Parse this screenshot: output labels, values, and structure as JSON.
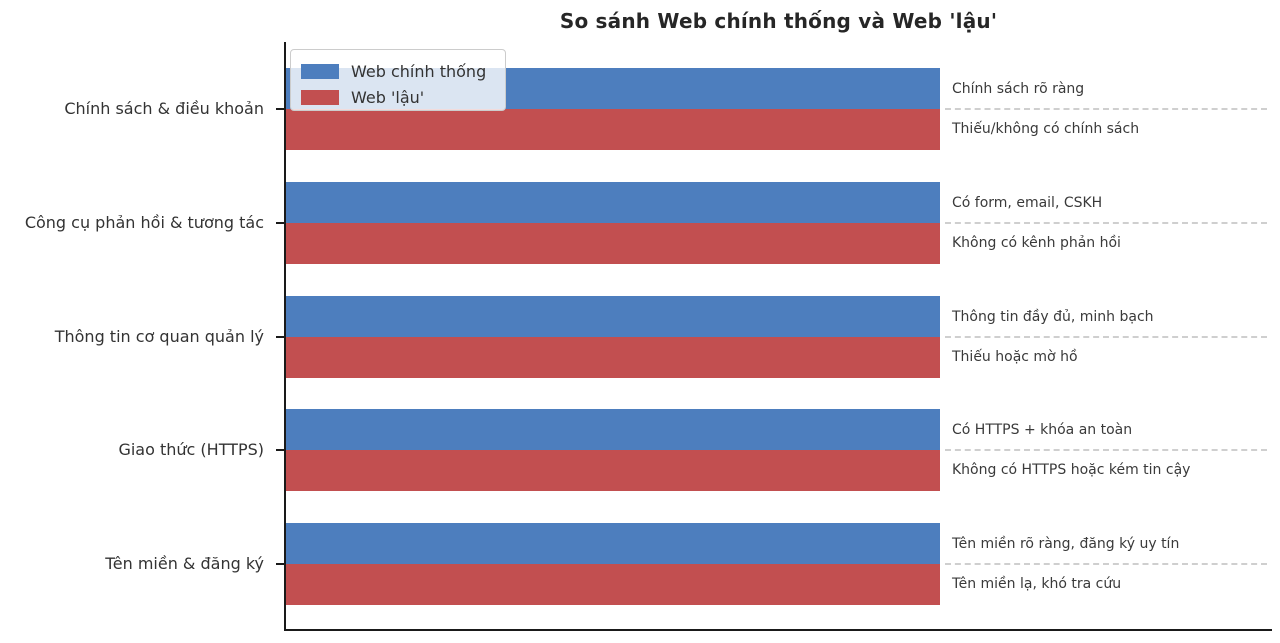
{
  "chart_data": {
    "type": "bar",
    "orientation": "horizontal",
    "title": "So sánh Web chính thống và Web 'lậu'",
    "categories": [
      "Chính sách & điều khoản",
      "Công cụ phản hồi & tương tác",
      "Thông tin cơ quan quản lý",
      "Giao thức (HTTPS)",
      "Tên miền & đăng ký"
    ],
    "series": [
      {
        "name": "Web chính thống",
        "color": "#4d7ebe",
        "values": [
          1,
          1,
          1,
          1,
          1
        ],
        "annotations": [
          "Chính sách rõ ràng",
          "Có form, email, CSKH",
          "Thông tin đầy đủ, minh bạch",
          "Có HTTPS + khóa an toàn",
          "Tên miền rõ ràng, đăng ký uy tín"
        ]
      },
      {
        "name": "Web 'lậu'",
        "color": "#c24f50",
        "values": [
          1,
          1,
          1,
          1,
          1
        ],
        "annotations": [
          "Thiếu/không có chính sách",
          "Không có kênh phản hồi",
          "Thiếu hoặc mờ hồ",
          "Không có HTTPS hoặc kém tin cậy",
          "Tên miền lạ, khó tra cứu"
        ]
      }
    ],
    "legend_position": "upper-left",
    "axes": {
      "x_ticks": [],
      "grid": false
    },
    "colors": {
      "spine": "#1a1a1a",
      "dashed_line": "#cfcfcf",
      "category_text": "#333333",
      "annotation_text": "#3a3a3a",
      "title_text": "#262626"
    }
  }
}
